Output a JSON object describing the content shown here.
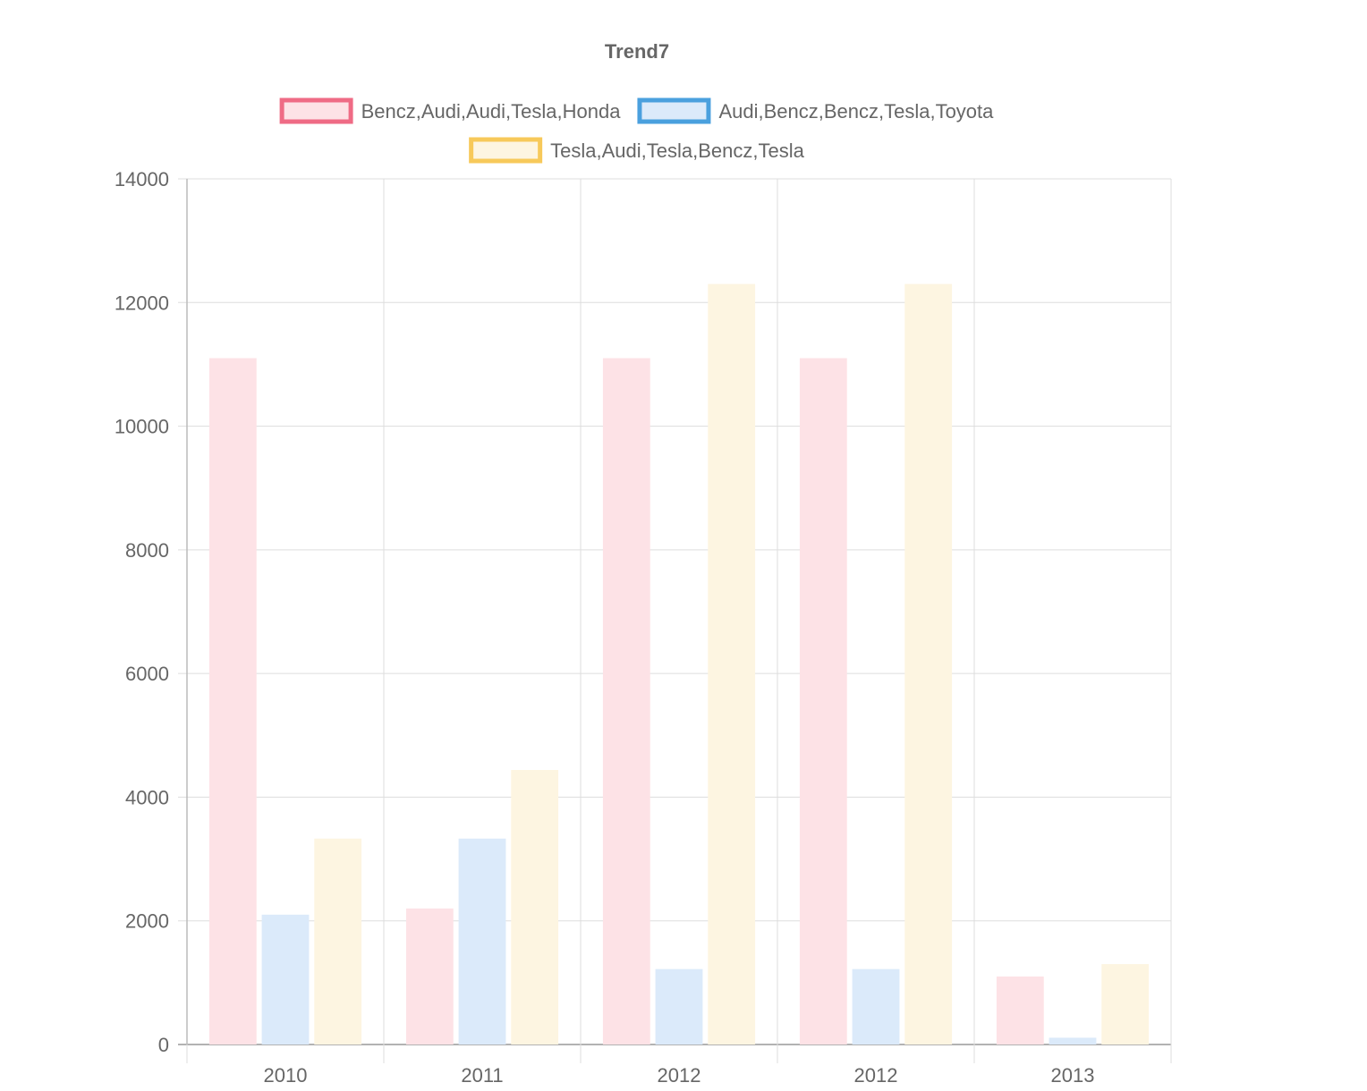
{
  "chart_data": {
    "type": "bar",
    "title": "Trend7",
    "xlabel": "",
    "ylabel": "",
    "ylim": [
      0,
      14000
    ],
    "yticks": [
      0,
      2000,
      4000,
      6000,
      8000,
      10000,
      12000,
      14000
    ],
    "categories": [
      "2010",
      "2011",
      "2012",
      "2012",
      "2013"
    ],
    "grid": true,
    "legend_position": "top",
    "series": [
      {
        "name": "Bencz,Audi,Audi,Tesla,Honda",
        "values": [
          11100,
          2200,
          11100,
          11100,
          1100
        ],
        "fill": "#fde2e6",
        "border": "#ef6b85"
      },
      {
        "name": "Audi,Bencz,Bencz,Tesla,Toyota",
        "values": [
          2100,
          3330,
          1220,
          1220,
          110
        ],
        "fill": "#dbeafa",
        "border": "#4aa0de"
      },
      {
        "name": "Tesla,Audi,Tesla,Bencz,Tesla",
        "values": [
          3330,
          4440,
          12300,
          12300,
          1300
        ],
        "fill": "#fdf5e1",
        "border": "#f7c95a"
      }
    ]
  }
}
